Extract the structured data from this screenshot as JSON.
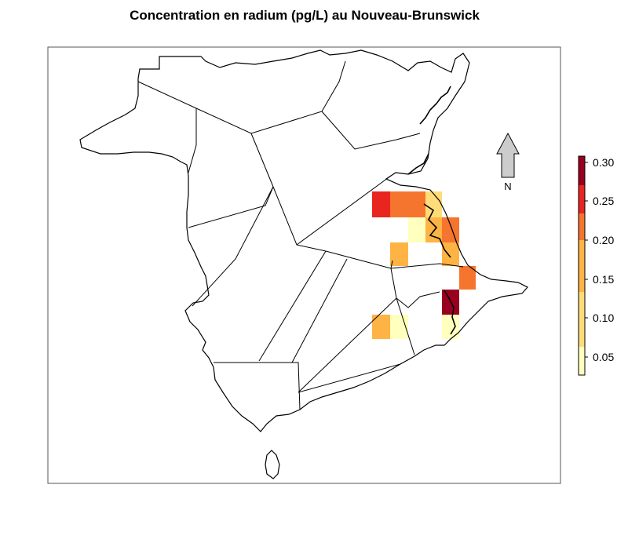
{
  "title": "Concentration en radium (pg/L) au Nouveau-Brunswick",
  "north_arrow": {
    "label": "N",
    "fill": "#cccccc"
  },
  "legend": {
    "ticks": [
      "0.30",
      "0.25",
      "0.20",
      "0.15",
      "0.10",
      "0.05"
    ],
    "colors": [
      "#99001f",
      "#e8251f",
      "#f5752e",
      "#fdb445",
      "#fedc79",
      "#ffffbe"
    ]
  },
  "cells": [
    {
      "color": "#e8251f"
    },
    {
      "color": "#f5752e"
    },
    {
      "color": "#f5752e"
    },
    {
      "color": "#fedc79"
    },
    {
      "color": "#ffffbe"
    },
    {
      "color": "#fdb445"
    },
    {
      "color": "#f5752e"
    },
    {
      "color": "#fdb445"
    },
    {
      "color": "#fdb445"
    },
    {
      "color": "#fdb445"
    },
    {
      "color": "#f5752e"
    },
    {
      "color": "#99001f"
    },
    {
      "color": "#fdb445"
    },
    {
      "color": "#ffffbe"
    },
    {
      "color": "#ffffbe"
    }
  ]
}
